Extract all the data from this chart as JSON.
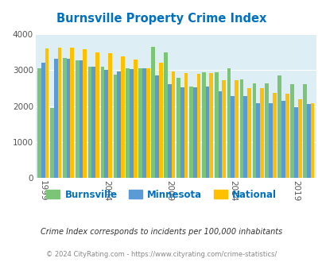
{
  "title": "Burnsville Property Crime Index",
  "subtitle": "Crime Index corresponds to incidents per 100,000 inhabitants",
  "footer": "© 2024 CityRating.com - https://www.cityrating.com/crime-statistics/",
  "years": [
    1999,
    2000,
    2001,
    2002,
    2003,
    2004,
    2005,
    2006,
    2007,
    2008,
    2009,
    2010,
    2011,
    2012,
    2013,
    2014,
    2015,
    2016,
    2017,
    2018,
    2019,
    2020
  ],
  "burnsville": [
    3050,
    1950,
    3340,
    3280,
    3100,
    3100,
    2870,
    3060,
    3060,
    3650,
    3500,
    2780,
    2550,
    2930,
    2930,
    3060,
    2740,
    2640,
    2640,
    2850,
    2600,
    2620
  ],
  "minnesota": [
    3200,
    3320,
    3320,
    3280,
    3090,
    3000,
    2960,
    3030,
    3050,
    2850,
    2620,
    2530,
    2530,
    2550,
    2420,
    2270,
    2270,
    2080,
    2080,
    2150,
    1970,
    2050
  ],
  "national": [
    3600,
    3630,
    3620,
    3580,
    3490,
    3470,
    3390,
    3300,
    3050,
    3200,
    2960,
    2920,
    2890,
    2910,
    2730,
    2720,
    2490,
    2500,
    2360,
    2350,
    2200,
    2080
  ],
  "bar_colors": [
    "#7cc576",
    "#5b9bd5",
    "#ffc000"
  ],
  "bg_color": "#ddeef5",
  "title_color": "#0070c0",
  "ylim": [
    0,
    4000
  ],
  "yticks": [
    0,
    1000,
    2000,
    3000,
    4000
  ],
  "xtick_years": [
    1999,
    2004,
    2009,
    2014,
    2019
  ],
  "legend_labels": [
    "Burnsville",
    "Minnesota",
    "National"
  ]
}
